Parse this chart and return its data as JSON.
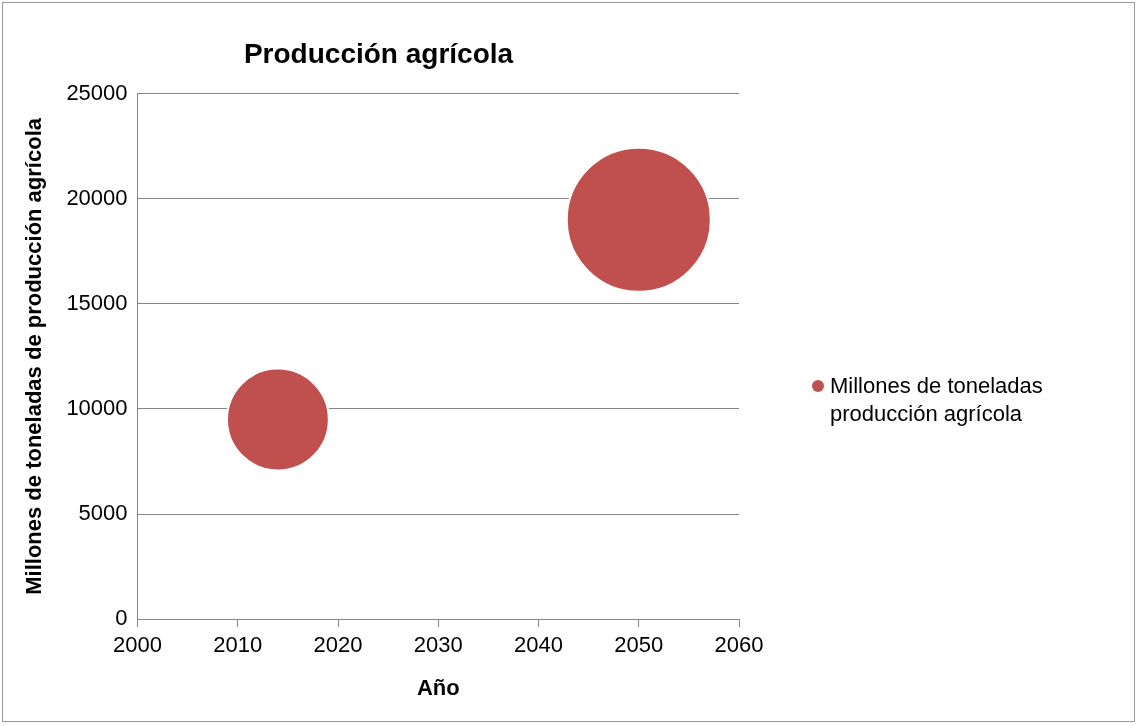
{
  "chart_data": {
    "type": "bubble",
    "title": "Producción agrícola",
    "xlabel": "Año",
    "ylabel": "Millones de toneladas de producción agrícola",
    "x": [
      2014,
      2050
    ],
    "series": [
      {
        "name": "Millones de toneladas producción agrícola",
        "color": "#c0504d",
        "values": [
          9500,
          19000
        ],
        "sizes": [
          0.5,
          1
        ]
      }
    ],
    "xlim": [
      2000,
      2060
    ],
    "xticks": [
      2000,
      2010,
      2020,
      2030,
      2040,
      2050,
      2060
    ],
    "ylim": [
      0,
      25000
    ],
    "yticks": [
      0,
      5000,
      10000,
      15000,
      20000,
      25000
    ],
    "grid": "y",
    "legend": "right"
  }
}
